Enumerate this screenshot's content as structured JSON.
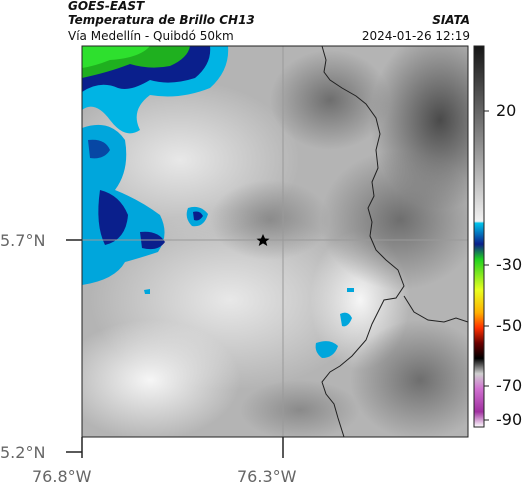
{
  "header": {
    "satellite": "GOES-EAST",
    "product": "Temperatura de Brillo CH13",
    "region": "Vía Medellín - Quibdó 50km",
    "organization": "SIATA",
    "timestamp": "2024-01-26 12:19"
  },
  "axes": {
    "lat_ticks": [
      "5.7°N",
      "5.2°N"
    ],
    "lon_ticks": [
      "76.8°W",
      "76.3°W"
    ]
  },
  "colorbar": {
    "labels": [
      "20",
      "-30",
      "-50",
      "-70",
      "-90"
    ]
  },
  "colors": {
    "cold_core": "#0a1f8c",
    "cyan": "#00a6dc",
    "green": "#1fd21f",
    "grid": "#9a9a9a",
    "border": "#202020"
  }
}
